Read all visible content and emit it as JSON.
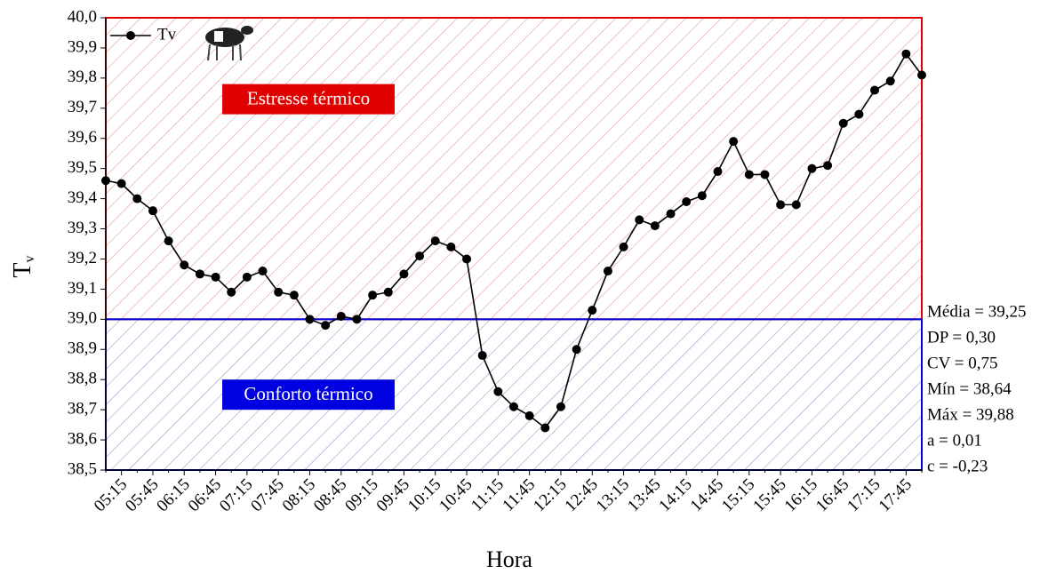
{
  "chart_data": {
    "type": "line",
    "xlabel": "Hora",
    "ylabel": "T",
    "ylabel_subscript": "v",
    "categories": [
      null,
      "05:15",
      null,
      "05:45",
      null,
      "06:15",
      null,
      "06:45",
      null,
      "07:15",
      null,
      "07:45",
      null,
      "08:15",
      null,
      "08:45",
      null,
      "09:15",
      null,
      "09:45",
      null,
      "10:15",
      null,
      "10:45",
      null,
      "11:15",
      null,
      "11:45",
      null,
      "12:15",
      null,
      "12:45",
      null,
      "13:15",
      null,
      "13:45",
      null,
      "14:15",
      null,
      "14:45",
      null,
      "15:15",
      null,
      "15:45",
      null,
      "16:15",
      null,
      "16:45",
      null,
      "17:15",
      null,
      "17:45",
      null
    ],
    "series": [
      {
        "name": "Tv",
        "color": "#000000",
        "values": [
          39.46,
          39.45,
          39.4,
          39.36,
          39.26,
          39.18,
          39.15,
          39.14,
          39.09,
          39.14,
          39.16,
          39.09,
          39.08,
          39.0,
          38.98,
          39.01,
          39.0,
          39.08,
          39.09,
          39.15,
          39.21,
          39.26,
          39.24,
          39.2,
          38.88,
          38.76,
          38.71,
          38.68,
          38.64,
          38.71,
          38.9,
          39.03,
          39.16,
          39.24,
          39.33,
          39.31,
          39.35,
          39.39,
          39.41,
          39.49,
          39.59,
          39.48,
          39.48,
          39.38,
          39.38,
          39.5,
          39.51,
          39.65,
          39.68,
          39.76,
          39.79,
          39.88,
          39.81
        ]
      }
    ],
    "ylim": [
      38.5,
      40.0
    ],
    "yticks": [
      {
        "value": 38.5,
        "label": "38,5"
      },
      {
        "value": 38.6,
        "label": "38,6"
      },
      {
        "value": 38.7,
        "label": "38,7"
      },
      {
        "value": 38.8,
        "label": "38,8"
      },
      {
        "value": 38.9,
        "label": "38,9"
      },
      {
        "value": 39.0,
        "label": "39,0"
      },
      {
        "value": 39.1,
        "label": "39,1"
      },
      {
        "value": 39.2,
        "label": "39,2"
      },
      {
        "value": 39.3,
        "label": "39,3"
      },
      {
        "value": 39.4,
        "label": "39,4"
      },
      {
        "value": 39.5,
        "label": "39,5"
      },
      {
        "value": 39.6,
        "label": "39,6"
      },
      {
        "value": 39.7,
        "label": "39,7"
      },
      {
        "value": 39.8,
        "label": "39,8"
      },
      {
        "value": 39.9,
        "label": "39,9"
      },
      {
        "value": 40.0,
        "label": "40,0"
      }
    ],
    "regions": [
      {
        "label": "Estresse térmico",
        "color": "#e00000",
        "from": 39.0,
        "to": 40.0
      },
      {
        "label": "Conforto térmico",
        "color": "#0000e0",
        "from": 38.5,
        "to": 39.0
      }
    ],
    "annotations": [
      "Média = 39,25",
      "DP = 0,30",
      "CV = 0,75",
      "Mín = 38,64",
      "Máx = 39,88",
      "a = 0,01",
      "c = -0,23"
    ],
    "legend": "upper left",
    "grid": false
  }
}
